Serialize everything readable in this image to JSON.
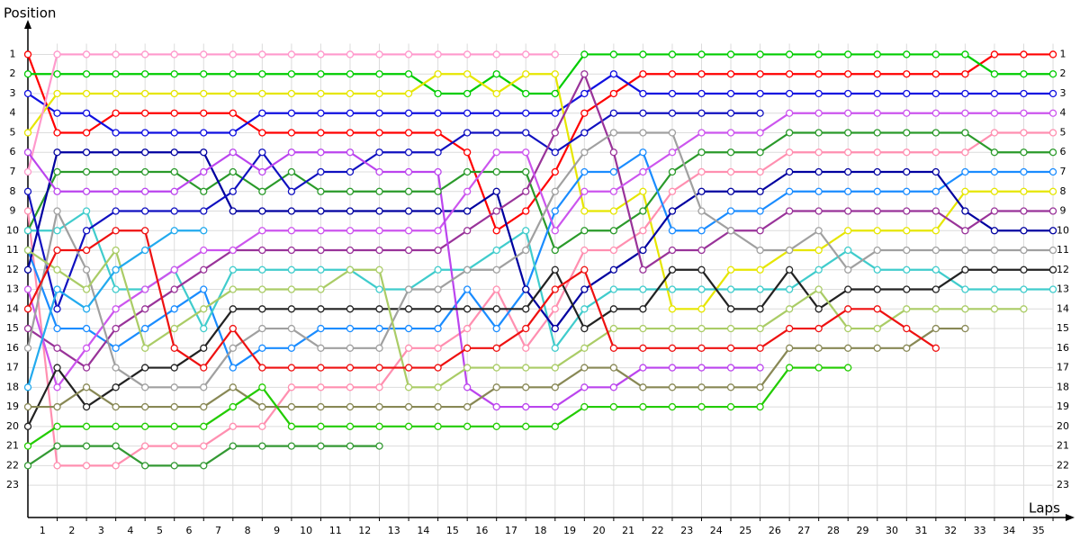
{
  "chart_data": {
    "type": "line",
    "y_label": "Position",
    "x_label": "Laps",
    "x": [
      0,
      1,
      2,
      3,
      4,
      5,
      6,
      7,
      8,
      9,
      10,
      11,
      12,
      13,
      14,
      15,
      16,
      17,
      18,
      19,
      20,
      21,
      22,
      23,
      24,
      25,
      26,
      27,
      28,
      29,
      30,
      31,
      32,
      33,
      34,
      35
    ],
    "xlim": [
      0,
      35.46
    ],
    "xticks": [
      1,
      2,
      3,
      4,
      5,
      6,
      7,
      8,
      9,
      10,
      11,
      12,
      13,
      14,
      15,
      16,
      17,
      18,
      19,
      20,
      21,
      22,
      23,
      24,
      25,
      26,
      27,
      28,
      29,
      30,
      31,
      32,
      33,
      34,
      35
    ],
    "ylim": [
      24.65,
      -0.4
    ],
    "yticks": [
      1,
      2,
      3,
      4,
      5,
      6,
      7,
      8,
      9,
      10,
      11,
      12,
      13,
      14,
      15,
      16,
      17,
      18,
      19,
      20,
      21,
      22,
      23
    ],
    "grid": true,
    "series": [
      {
        "color": "#ff0000",
        "values": [
          1,
          5,
          5,
          4,
          4,
          4,
          4,
          4,
          5,
          5,
          5,
          5,
          5,
          5,
          5,
          6,
          10,
          9,
          7,
          4,
          3,
          2,
          2,
          2,
          2,
          2,
          2,
          2,
          2,
          2,
          2,
          2,
          2,
          1,
          1,
          1
        ]
      },
      {
        "color": "#00cc00",
        "values": [
          2,
          2,
          2,
          2,
          2,
          2,
          2,
          2,
          2,
          2,
          2,
          2,
          2,
          2,
          3,
          3,
          2,
          3,
          3,
          1,
          1,
          1,
          1,
          1,
          1,
          1,
          1,
          1,
          1,
          1,
          1,
          1,
          1,
          2,
          2,
          2
        ]
      },
      {
        "color": "#1010e0",
        "values": [
          3,
          4,
          4,
          5,
          5,
          5,
          5,
          5,
          4,
          4,
          4,
          4,
          4,
          4,
          4,
          4,
          4,
          4,
          4,
          3,
          2,
          3,
          3,
          3,
          3,
          3,
          3,
          3,
          3,
          3,
          3,
          3,
          3,
          3,
          3,
          3
        ]
      },
      {
        "color": "#e6e600",
        "values": [
          5,
          3,
          3,
          3,
          3,
          3,
          3,
          3,
          3,
          3,
          3,
          3,
          3,
          3,
          2,
          2,
          3,
          2,
          2,
          9,
          9,
          8,
          14,
          14,
          12,
          12,
          11,
          11,
          10,
          10,
          10,
          10,
          8,
          8,
          8,
          8
        ]
      },
      {
        "color": "#ff99cc",
        "values": [
          7,
          1,
          1,
          1,
          1,
          1,
          1,
          1,
          1,
          1,
          1,
          1,
          1,
          1,
          1,
          1,
          1,
          1,
          1,
          null,
          null,
          null,
          null,
          null,
          null,
          null,
          null,
          null,
          null,
          null,
          null,
          null,
          null,
          null,
          null,
          null
        ]
      },
      {
        "color": "#ff8fb0",
        "values": [
          9,
          22,
          22,
          22,
          21,
          21,
          21,
          20,
          20,
          18,
          18,
          18,
          18,
          16,
          16,
          15,
          13,
          16,
          14,
          11,
          11,
          10,
          8,
          7,
          7,
          7,
          6,
          6,
          6,
          6,
          6,
          6,
          6,
          5,
          5,
          5
        ]
      },
      {
        "color": "#2a9a2a",
        "values": [
          10,
          7,
          7,
          7,
          7,
          7,
          8,
          7,
          8,
          7,
          8,
          8,
          8,
          8,
          8,
          7,
          7,
          7,
          11,
          10,
          10,
          9,
          7,
          6,
          6,
          6,
          5,
          5,
          5,
          5,
          5,
          5,
          5,
          6,
          6,
          6
        ]
      },
      {
        "color": "#1a8cff",
        "values": [
          11,
          15,
          15,
          16,
          15,
          14,
          13,
          17,
          16,
          16,
          15,
          15,
          15,
          15,
          15,
          13,
          15,
          13,
          9,
          7,
          7,
          6,
          10,
          10,
          9,
          9,
          8,
          8,
          8,
          8,
          8,
          8,
          7,
          7,
          7,
          7
        ]
      },
      {
        "color": "#40cccc",
        "values": [
          10,
          10,
          9,
          13,
          13,
          12,
          15,
          12,
          12,
          12,
          12,
          12,
          13,
          13,
          12,
          12,
          11,
          10,
          16,
          14,
          13,
          13,
          13,
          13,
          13,
          13,
          13,
          12,
          11,
          12,
          12,
          12,
          13,
          13,
          13,
          13
        ]
      },
      {
        "color": "#0000a0",
        "values": [
          12,
          6,
          6,
          6,
          6,
          6,
          6,
          9,
          9,
          9,
          9,
          9,
          9,
          9,
          9,
          9,
          8,
          13,
          15,
          13,
          12,
          11,
          9,
          8,
          8,
          8,
          7,
          7,
          7,
          7,
          7,
          7,
          9,
          10,
          10,
          10
        ]
      },
      {
        "color": "#1010c0",
        "values": [
          8,
          14,
          10,
          9,
          9,
          9,
          9,
          8,
          6,
          8,
          7,
          7,
          6,
          6,
          6,
          5,
          5,
          5,
          6,
          5,
          4,
          4,
          4,
          4,
          4,
          4,
          null,
          null,
          null,
          null,
          null,
          null,
          null,
          null,
          null,
          null
        ]
      },
      {
        "color": "#993399",
        "values": [
          15,
          16,
          17,
          15,
          14,
          13,
          12,
          11,
          11,
          11,
          11,
          11,
          11,
          11,
          11,
          10,
          9,
          8,
          5,
          2,
          6,
          12,
          11,
          11,
          10,
          10,
          9,
          9,
          9,
          9,
          9,
          9,
          10,
          9,
          9,
          9
        ]
      },
      {
        "color": "#cc55ee",
        "values": [
          13,
          18,
          16,
          14,
          13,
          12,
          11,
          11,
          10,
          10,
          10,
          10,
          10,
          10,
          10,
          8,
          6,
          6,
          10,
          8,
          8,
          7,
          6,
          5,
          5,
          5,
          4,
          4,
          4,
          4,
          4,
          4,
          4,
          4,
          4,
          4
        ]
      },
      {
        "color": "#bb44ee",
        "values": [
          6,
          8,
          8,
          8,
          8,
          8,
          7,
          6,
          7,
          6,
          6,
          6,
          7,
          7,
          7,
          18,
          19,
          19,
          19,
          18,
          18,
          17,
          17,
          17,
          17,
          17,
          null,
          null,
          null,
          null,
          null,
          null,
          null,
          null,
          null,
          null
        ]
      },
      {
        "color": "#222222",
        "values": [
          20,
          17,
          19,
          18,
          17,
          17,
          16,
          14,
          14,
          14,
          14,
          14,
          14,
          14,
          14,
          14,
          14,
          14,
          12,
          15,
          14,
          14,
          12,
          12,
          14,
          14,
          12,
          14,
          13,
          13,
          13,
          13,
          12,
          12,
          12,
          12
        ]
      },
      {
        "color": "#a0a0a0",
        "values": [
          16,
          9,
          12,
          17,
          18,
          18,
          18,
          16,
          15,
          15,
          16,
          16,
          16,
          13,
          13,
          12,
          12,
          11,
          8,
          6,
          5,
          5,
          5,
          9,
          10,
          11,
          11,
          10,
          12,
          11,
          11,
          11,
          11,
          11,
          11,
          11
        ]
      },
      {
        "color": "#aacc66",
        "values": [
          11,
          12,
          13,
          11,
          16,
          15,
          14,
          13,
          13,
          13,
          13,
          12,
          12,
          18,
          18,
          17,
          17,
          17,
          17,
          16,
          15,
          15,
          15,
          15,
          15,
          15,
          14,
          13,
          15,
          15,
          14,
          14,
          14,
          14,
          14,
          null
        ]
      },
      {
        "color": "#888855",
        "values": [
          19,
          19,
          18,
          19,
          19,
          19,
          19,
          18,
          19,
          19,
          19,
          19,
          19,
          19,
          19,
          19,
          18,
          18,
          18,
          17,
          17,
          18,
          18,
          18,
          18,
          18,
          16,
          16,
          16,
          16,
          16,
          15,
          15,
          null,
          null,
          null
        ]
      },
      {
        "color": "#22cc00",
        "values": [
          21,
          20,
          20,
          20,
          20,
          20,
          20,
          19,
          18,
          20,
          20,
          20,
          20,
          20,
          20,
          20,
          20,
          20,
          20,
          19,
          19,
          19,
          19,
          19,
          19,
          19,
          17,
          17,
          17,
          null,
          null,
          null,
          null,
          null,
          null,
          null
        ]
      },
      {
        "color": "#339933",
        "values": [
          22,
          21,
          21,
          21,
          22,
          22,
          22,
          21,
          21,
          21,
          21,
          21,
          21,
          null,
          null,
          null,
          null,
          null,
          null,
          null,
          null,
          null,
          null,
          null,
          null,
          null,
          null,
          null,
          null,
          null,
          null,
          null,
          null,
          null,
          null,
          null
        ]
      },
      {
        "color": "#ee1111",
        "values": [
          14,
          11,
          11,
          10,
          10,
          16,
          17,
          15,
          17,
          17,
          17,
          17,
          17,
          17,
          17,
          16,
          16,
          15,
          13,
          12,
          16,
          16,
          16,
          16,
          16,
          16,
          15,
          15,
          14,
          14,
          15,
          16,
          null,
          null,
          null,
          null
        ]
      },
      {
        "color": "#22aaee",
        "values": [
          18,
          13,
          14,
          12,
          11,
          10,
          10,
          null,
          null,
          null,
          null,
          null,
          null,
          null,
          null,
          null,
          null,
          null,
          null,
          null,
          null,
          null,
          null,
          null,
          null,
          null,
          null,
          null,
          null,
          null,
          null,
          null,
          null,
          null,
          null,
          null
        ]
      }
    ]
  }
}
